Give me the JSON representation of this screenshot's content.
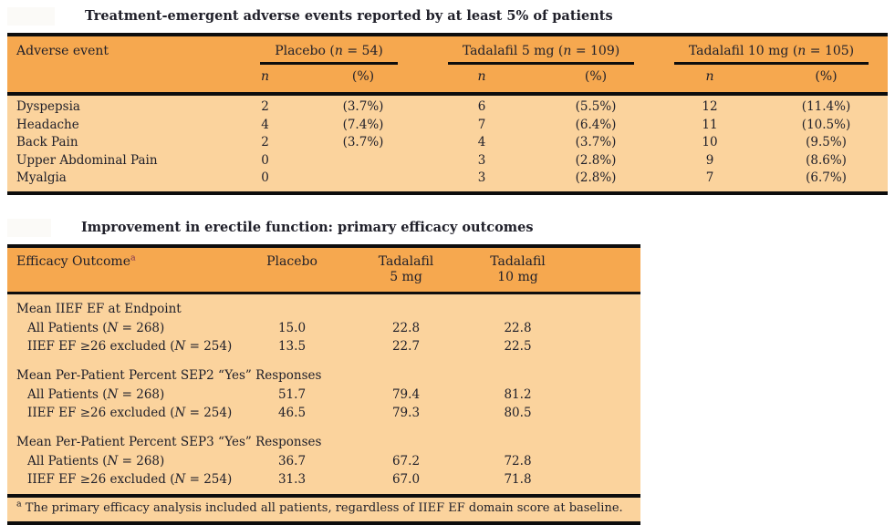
{
  "colors": {
    "page_bg": "#ffffff",
    "header_bg": "#f6a84f",
    "body_bg": "#fbd39d",
    "border": "#0d0d0d",
    "text": "#20202a",
    "sup_accent": "#7b2d52",
    "redacted_bg": "#fbfaf7"
  },
  "table1": {
    "title": "Treatment-emergent adverse events reported by at least 5% of patients",
    "header": {
      "row_label": "Adverse event",
      "groups": [
        {
          "title": [
            {
              "t": "Placebo ("
            },
            {
              "t": "n",
              "i": true
            },
            {
              "t": " = 54)"
            }
          ]
        },
        {
          "title": [
            {
              "t": "Tadalafil 5 mg ("
            },
            {
              "t": "n",
              "i": true
            },
            {
              "t": " = 109)"
            }
          ]
        },
        {
          "title": [
            {
              "t": "Tadalafil 10 mg ("
            },
            {
              "t": "n",
              "i": true
            },
            {
              "t": " = 105)"
            }
          ]
        }
      ],
      "sub_n": [
        {
          "t": "n",
          "i": true
        }
      ],
      "sub_pct": "(%)"
    },
    "rows": [
      {
        "event": "Dyspepsia",
        "cells": [
          "2",
          "(3.7%)",
          "6",
          "(5.5%)",
          "12",
          "(11.4%)"
        ]
      },
      {
        "event": "Headache",
        "cells": [
          "4",
          "(7.4%)",
          "7",
          "(6.4%)",
          "11",
          "(10.5%)"
        ]
      },
      {
        "event": "Back Pain",
        "cells": [
          "2",
          "(3.7%)",
          "4",
          "(3.7%)",
          "10",
          "(9.5%)"
        ]
      },
      {
        "event": "Upper Abdominal Pain",
        "cells": [
          "0",
          "",
          "3",
          "(2.8%)",
          "9",
          "(8.6%)"
        ]
      },
      {
        "event": "Myalgia",
        "cells": [
          "0",
          "",
          "3",
          "(2.8%)",
          "7",
          "(6.7%)"
        ]
      }
    ]
  },
  "table2": {
    "title": "Improvement in erectile function: primary efficacy outcomes",
    "header": {
      "label": [
        {
          "t": "Efficacy Outcome"
        },
        {
          "t": "a",
          "sup": true
        }
      ],
      "cols": [
        {
          "l1": "Placebo",
          "l2": ""
        },
        {
          "l1": "Tadalafil",
          "l2": "5 mg"
        },
        {
          "l1": "Tadalafil",
          "l2": "10 mg"
        }
      ]
    },
    "sections": [
      {
        "heading": "Mean IIEF EF at Endpoint",
        "rows": [
          {
            "label": [
              {
                "t": "All Patients ("
              },
              {
                "t": "N",
                "i": true
              },
              {
                "t": " = 268)"
              }
            ],
            "values": [
              "15.0",
              "22.8",
              "22.8"
            ]
          },
          {
            "label": [
              {
                "t": "IIEF EF ≥26 excluded ("
              },
              {
                "t": "N",
                "i": true
              },
              {
                "t": " = 254)"
              }
            ],
            "values": [
              "13.5",
              "22.7",
              "22.5"
            ]
          }
        ]
      },
      {
        "heading": "Mean Per-Patient Percent SEP2 “Yes” Responses",
        "rows": [
          {
            "label": [
              {
                "t": "All Patients ("
              },
              {
                "t": "N",
                "i": true
              },
              {
                "t": " = 268)"
              }
            ],
            "values": [
              "51.7",
              "79.4",
              "81.2"
            ]
          },
          {
            "label": [
              {
                "t": "IIEF EF ≥26 excluded ("
              },
              {
                "t": "N",
                "i": true
              },
              {
                "t": " = 254)"
              }
            ],
            "values": [
              "46.5",
              "79.3",
              "80.5"
            ]
          }
        ]
      },
      {
        "heading": "Mean Per-Patient Percent SEP3 “Yes” Responses",
        "rows": [
          {
            "label": [
              {
                "t": "All Patients ("
              },
              {
                "t": "N",
                "i": true
              },
              {
                "t": " = 268)"
              }
            ],
            "values": [
              "36.7",
              "67.2",
              "72.8"
            ]
          },
          {
            "label": [
              {
                "t": "IIEF EF ≥26 excluded ("
              },
              {
                "t": "N",
                "i": true
              },
              {
                "t": " = 254)"
              }
            ],
            "values": [
              "31.3",
              "67.0",
              "71.8"
            ]
          }
        ]
      }
    ],
    "footnote": [
      {
        "t": "a",
        "sup": true
      },
      {
        "t": " The primary efficacy analysis included all patients, regardless of IIEF EF domain score at baseline."
      }
    ]
  }
}
